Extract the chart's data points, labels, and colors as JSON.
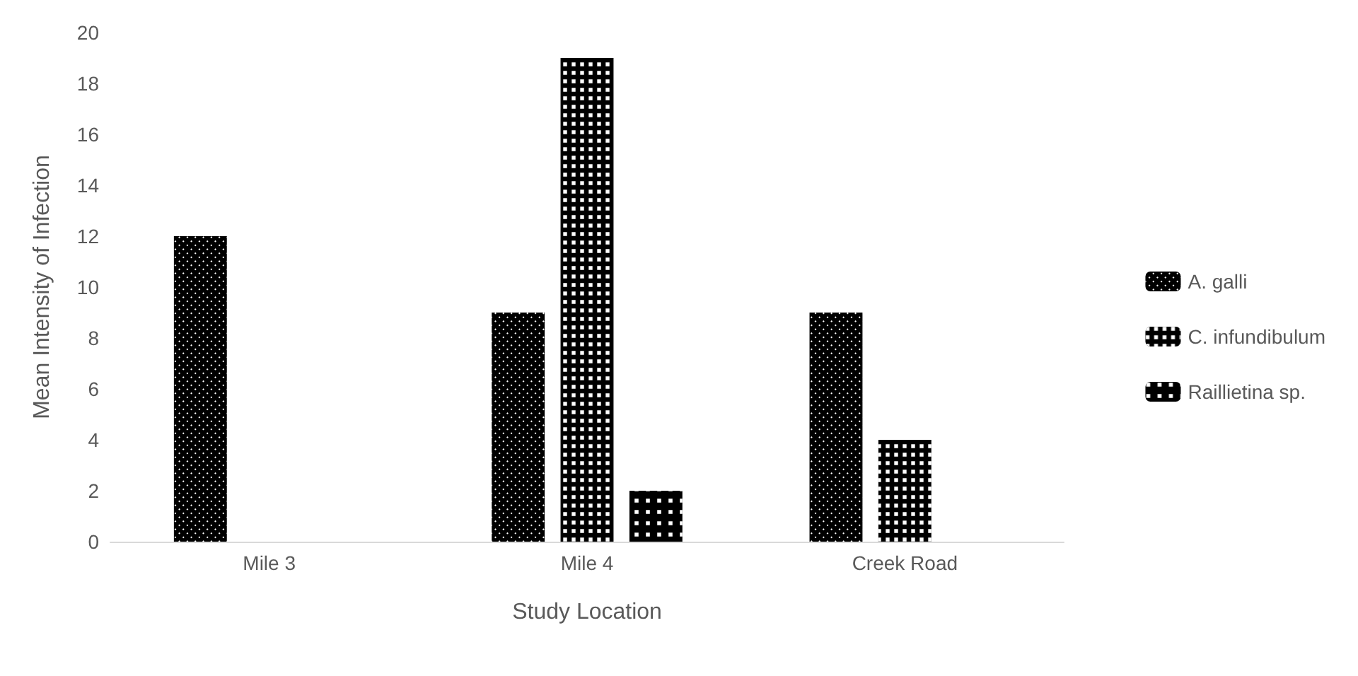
{
  "chart_data": {
    "type": "bar",
    "xlabel": "Study Location",
    "ylabel": "Mean Intensity of Infection",
    "categories": [
      "Mile 3",
      "Mile 4",
      "Creek Road"
    ],
    "series": [
      {
        "name": "A. galli",
        "color": "#000000",
        "values": [
          12,
          9,
          9
        ]
      },
      {
        "name": "C. infundibulum",
        "color": "#000000",
        "values": [
          0,
          19,
          4
        ]
      },
      {
        "name": "Raillietina sp.",
        "color": "#000000",
        "values": [
          0,
          2,
          0
        ]
      }
    ],
    "ylim": [
      0,
      20
    ],
    "yticks": [
      0,
      2,
      4,
      6,
      8,
      10,
      12,
      14,
      16,
      18,
      20
    ],
    "grid": false,
    "legend": "right"
  }
}
